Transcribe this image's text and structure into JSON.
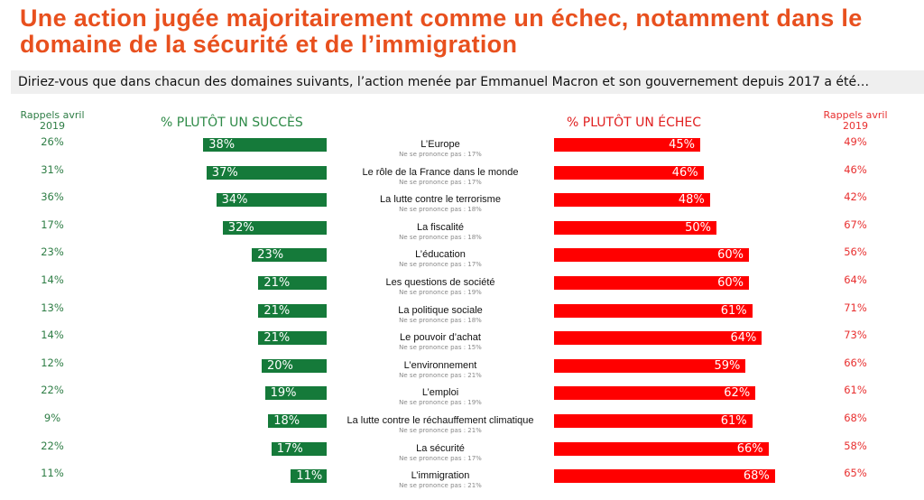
{
  "title": "Une action jugée majoritairement comme un échec, notamment dans le domaine de la sécurité et de l’immigration",
  "subtitle": "Diriez-vous que dans chacun des domaines suivants, l’action menée par Emmanuel Macron et son gouvernement depuis 2017 a été…",
  "colors": {
    "success": "#157a3a",
    "failure": "#ff0000",
    "title": "#e8501e"
  },
  "chart_data": {
    "type": "bar",
    "orientation": "horizontal-diverging",
    "left_header": "% PLUTÔT UN SUCCÈS",
    "right_header": "% PLUTÔT UN ÉCHEC",
    "recall_left_header": "Rappels avril 2019",
    "recall_right_header": "Rappels avril 2019",
    "nsp_prefix": "Ne se prononce pas : ",
    "categories": [
      "L’Europe",
      "Le rôle de la France dans le monde",
      "La lutte contre le terrorisme",
      "La fiscalité",
      "L’éducation",
      "Les questions de société",
      "La politique sociale",
      "Le pouvoir d’achat",
      "L’environnement",
      "L’emploi",
      "La lutte contre le réchauffement climatique",
      "La sécurité",
      "L’immigration"
    ],
    "series": [
      {
        "name": "% PLUTÔT UN SUCCÈS",
        "values": [
          38,
          37,
          34,
          32,
          23,
          21,
          21,
          21,
          20,
          19,
          18,
          17,
          11
        ]
      },
      {
        "name": "% PLUTÔT UN ÉCHEC",
        "values": [
          45,
          46,
          48,
          50,
          60,
          60,
          61,
          64,
          59,
          62,
          61,
          66,
          68
        ]
      }
    ],
    "recall_success_2019": [
      26,
      31,
      36,
      17,
      23,
      14,
      13,
      14,
      12,
      22,
      9,
      22,
      11
    ],
    "recall_failure_2019": [
      49,
      46,
      42,
      67,
      56,
      64,
      71,
      73,
      66,
      61,
      68,
      58,
      65
    ],
    "ne_se_prononce_pas": [
      17,
      17,
      18,
      18,
      17,
      19,
      18,
      15,
      21,
      19,
      21,
      17,
      21
    ]
  }
}
